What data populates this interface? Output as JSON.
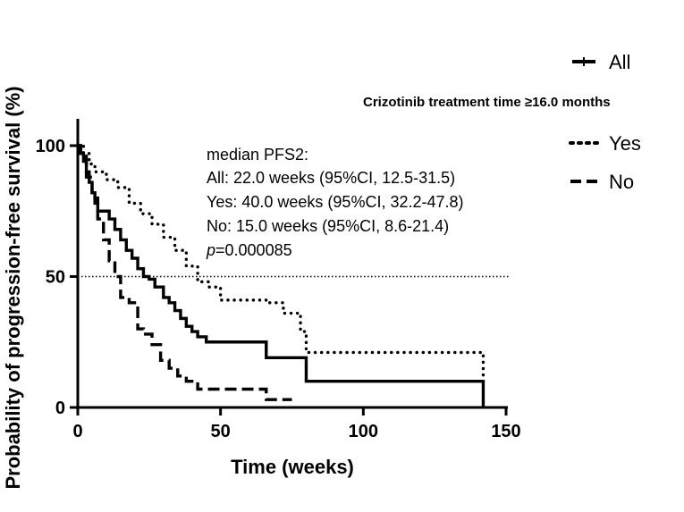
{
  "chart_data": {
    "type": "line",
    "title": "",
    "xlabel": "Time (weeks)",
    "ylabel": "Probability of progression-free survival (%)",
    "xlim": [
      0,
      150
    ],
    "ylim": [
      0,
      100
    ],
    "xticks": [
      "0",
      "50",
      "100",
      "150"
    ],
    "yticks": [
      "0",
      "50",
      "100"
    ],
    "reference_line_y": 50,
    "annotations": {
      "heading": "median PFS2:",
      "all": "All: 22.0 weeks (95%CI, 12.5-31.5)",
      "yes": "Yes: 40.0 weeks (95%CI, 32.2-47.8)",
      "no": "No: 15.0 weeks (95%CI, 8.6-21.4)",
      "p_label": "p",
      "p_value": "=0.000085"
    },
    "legend": {
      "all_label": "All",
      "group_title": "Crizotinib treatment time ≥16.0 months",
      "yes_label": "Yes",
      "no_label": "No"
    },
    "series": [
      {
        "name": "All",
        "style": "solid",
        "x": [
          0,
          1,
          2,
          3,
          4,
          5,
          6,
          7,
          9,
          11,
          13,
          15,
          17,
          19,
          21,
          23,
          25,
          27,
          30,
          32,
          34,
          36,
          38,
          40,
          42,
          45,
          50,
          55,
          60,
          66,
          70,
          80,
          90,
          100,
          110,
          120,
          130,
          142,
          142
        ],
        "y": [
          100,
          97,
          94,
          90,
          86,
          82,
          78,
          75,
          75,
          72,
          68,
          64,
          60,
          57,
          53,
          50,
          49,
          46,
          42,
          40,
          37,
          34,
          31,
          29,
          27,
          25,
          25,
          25,
          25,
          19,
          19,
          10,
          10,
          10,
          10,
          10,
          10,
          10,
          0
        ]
      },
      {
        "name": "Yes",
        "style": "dotted",
        "x": [
          0,
          2,
          4,
          6,
          10,
          14,
          18,
          22,
          26,
          30,
          34,
          38,
          42,
          46,
          50,
          60,
          66,
          72,
          76,
          78,
          80,
          84,
          90,
          100,
          110,
          120,
          130,
          142,
          142
        ],
        "y": [
          100,
          97,
          93,
          90,
          87,
          84,
          78,
          74,
          70,
          65,
          60,
          54,
          48,
          46,
          41,
          41,
          40,
          36,
          36,
          29,
          21,
          21,
          21,
          21,
          21,
          21,
          21,
          21,
          10
        ]
      },
      {
        "name": "No",
        "style": "dashed",
        "x": [
          0,
          1,
          3,
          5,
          7,
          9,
          11,
          13,
          15,
          18,
          21,
          23,
          26,
          29,
          32,
          35,
          38,
          42,
          45,
          50,
          60,
          66,
          68,
          75
        ],
        "y": [
          100,
          96,
          88,
          80,
          72,
          64,
          56,
          50,
          42,
          40,
          30,
          28,
          24,
          18,
          15,
          12,
          10,
          7,
          7,
          7,
          7,
          3,
          3,
          3
        ]
      }
    ]
  }
}
